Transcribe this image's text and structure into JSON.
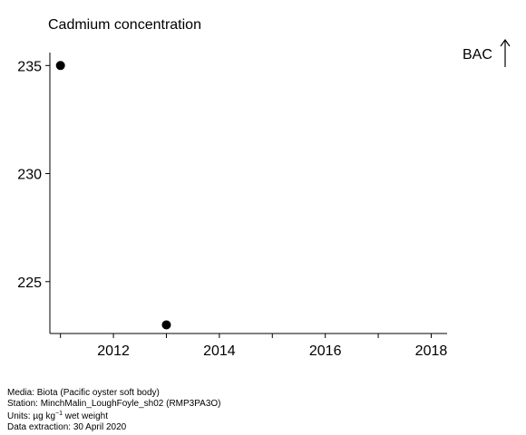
{
  "chart_data": {
    "type": "scatter",
    "title": "Cadmium concentration",
    "xlabel": "",
    "ylabel": "",
    "xlim": [
      2010.8,
      2018.3
    ],
    "ylim": [
      222.6,
      235.6
    ],
    "xticks": [
      2011,
      2012,
      2013,
      2014,
      2015,
      2016,
      2017,
      2018
    ],
    "xtick_labels": [
      "",
      "2012",
      "",
      "2014",
      "",
      "2016",
      "",
      "2018"
    ],
    "yticks": [
      225,
      230,
      235
    ],
    "ytick_labels": [
      "225",
      "230",
      "235"
    ],
    "grid": false,
    "points": [
      {
        "x": 2011,
        "y": 235
      },
      {
        "x": 2013,
        "y": 223
      }
    ],
    "marker_color": "#000000",
    "annotation": {
      "label": "BAC",
      "direction": "up-arrow"
    }
  },
  "footer": {
    "media": "Media: Biota (Pacific oyster soft body)",
    "station": "Station: MinchMalin_LoughFoyle_sh02 (RMP3PA3O)",
    "units_prefix": "Units:  µg kg",
    "units_sup": "−1",
    "units_suffix": " wet weight",
    "extraction": "Data extraction: 30 April 2020"
  }
}
